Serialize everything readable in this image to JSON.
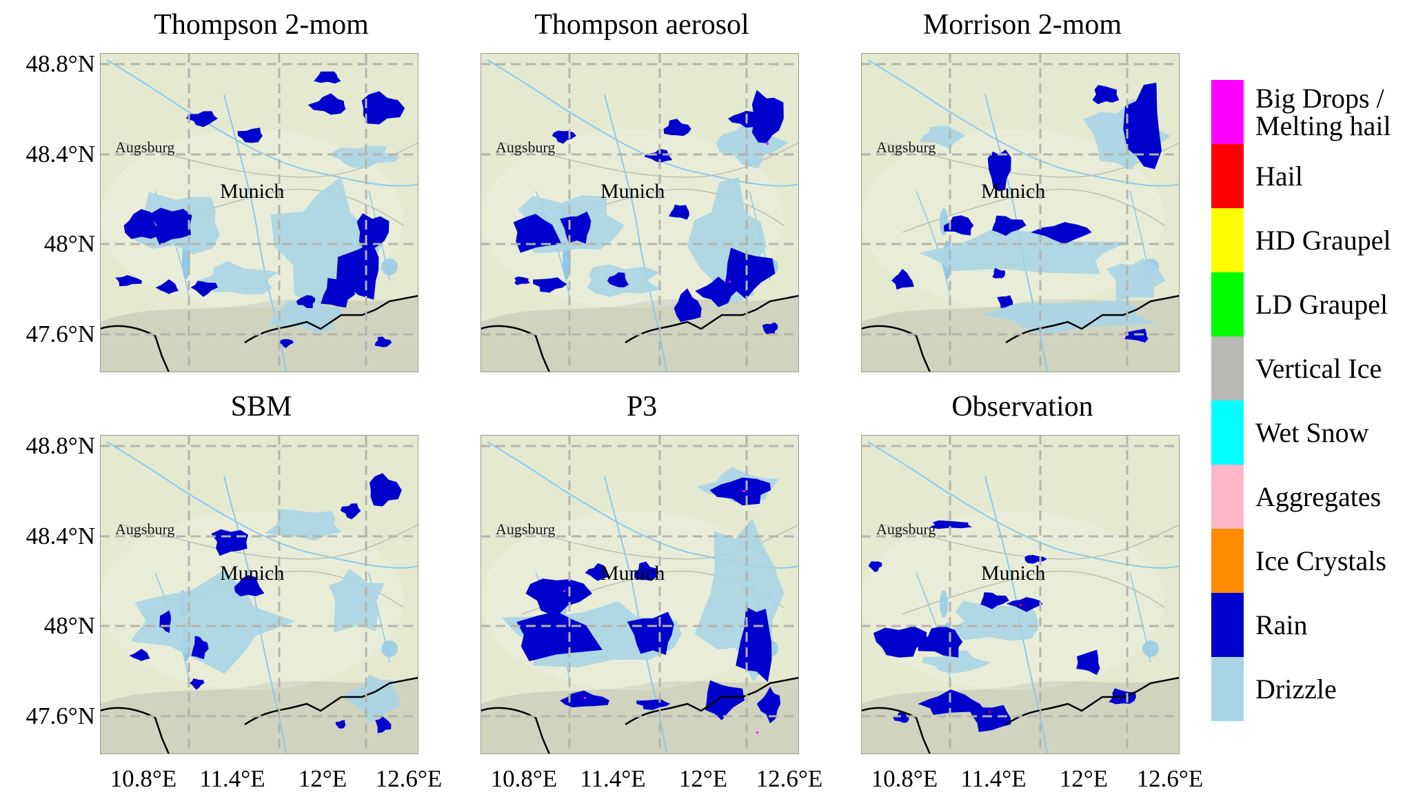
{
  "panels": [
    {
      "title": "Thompson 2-mom",
      "scheme": "thompson2mom"
    },
    {
      "title": "Thompson aerosol",
      "scheme": "thompsonaerosol"
    },
    {
      "title": "Morrison 2-mom",
      "scheme": "morrison"
    },
    {
      "title": "SBM",
      "scheme": "sbm"
    },
    {
      "title": "P3",
      "scheme": "p3"
    },
    {
      "title": "Observation",
      "scheme": "observation"
    }
  ],
  "cities": {
    "augsburg": "Augsburg",
    "munich": "Munich"
  },
  "axes": {
    "lat_ticks": [
      "48.8°N",
      "48.4°N",
      "48°N",
      "47.6°N"
    ],
    "lon_ticks": [
      "10.8°E",
      "11.4°E",
      "12°E",
      "12.6°E"
    ]
  },
  "legend": [
    {
      "label": "Big Drops / Melting hail",
      "color": "#ff00ff"
    },
    {
      "label": "Hail",
      "color": "#ff0000"
    },
    {
      "label": "HD Graupel",
      "color": "#ffff00"
    },
    {
      "label": "LD Graupel",
      "color": "#00ff00"
    },
    {
      "label": "Vertical Ice",
      "color": "#b8b8b4"
    },
    {
      "label": "Wet Snow",
      "color": "#00ffff"
    },
    {
      "label": "Aggregates",
      "color": "#ffb6c8"
    },
    {
      "label": "Ice Crystals",
      "color": "#ff8c00"
    },
    {
      "label": "Rain",
      "color": "#0000cd"
    },
    {
      "label": "Drizzle",
      "color": "#a8d4e6"
    }
  ],
  "map_colors": {
    "land": "#e4e9d0",
    "terrain": "#bfc2b0",
    "water": "#8fc8e8",
    "grid": "#b4b4ac",
    "border": "#000000"
  }
}
